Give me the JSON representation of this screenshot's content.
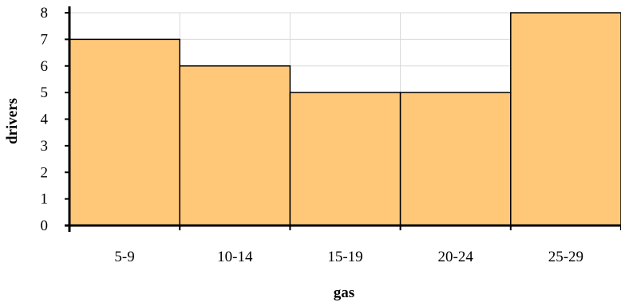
{
  "chart_data": {
    "type": "bar",
    "title": "",
    "xlabel": "gas",
    "ylabel": "drivers",
    "categories": [
      "5-9",
      "10-14",
      "15-19",
      "20-24",
      "25-29"
    ],
    "values": [
      7,
      6,
      5,
      5,
      8
    ],
    "ylim": [
      0,
      8
    ],
    "yticks": [
      "0",
      "1",
      "2",
      "3",
      "4",
      "5",
      "6",
      "7",
      "8"
    ],
    "grid": true,
    "legend": "none",
    "colors": {
      "bar_fill": "#FFC878",
      "bar_stroke": "#000000",
      "grid": "#D9D9D9",
      "axis": "#000000"
    }
  }
}
